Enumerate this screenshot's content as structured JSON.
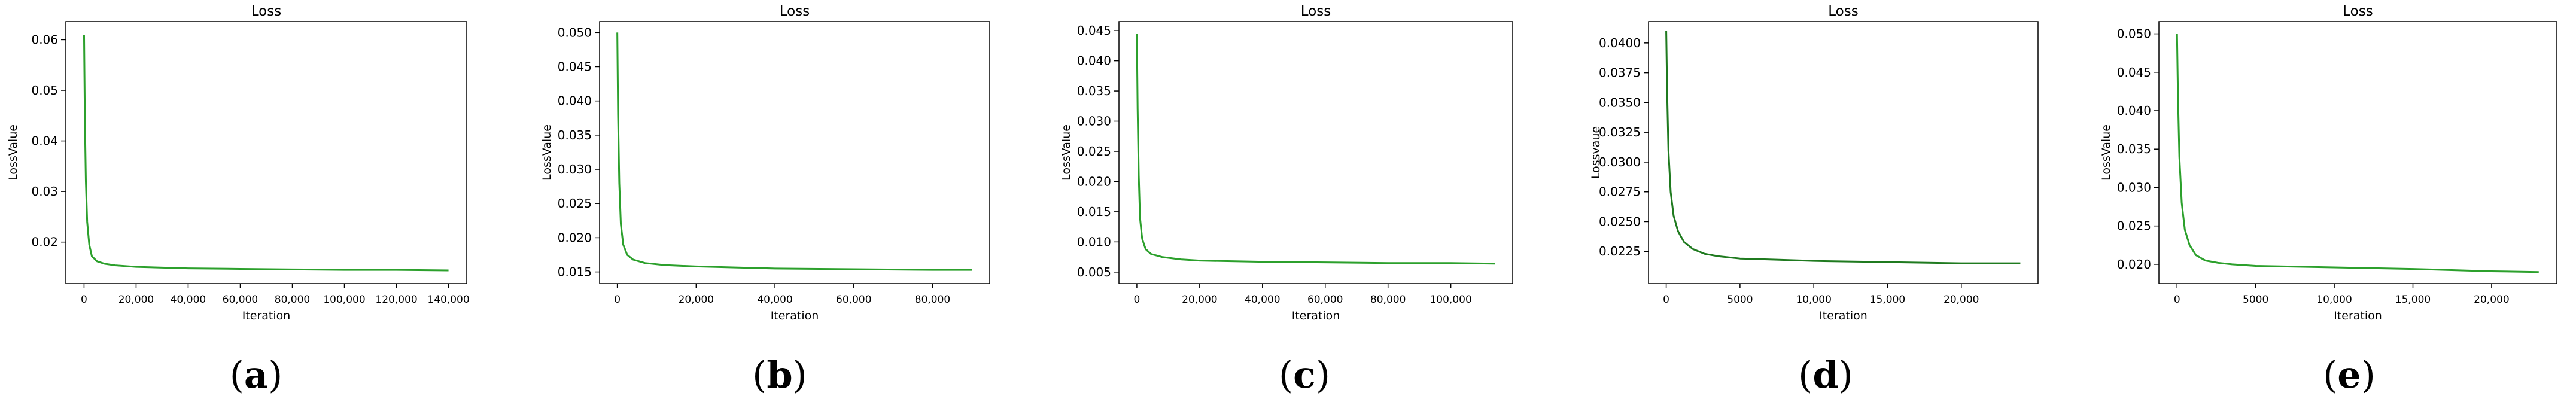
{
  "figure": {
    "captions": [
      {
        "open": "(",
        "letter": "a",
        "close": ")"
      },
      {
        "open": "(",
        "letter": "b",
        "close": ")"
      },
      {
        "open": "(",
        "letter": "c",
        "close": ")"
      },
      {
        "open": "(",
        "letter": "d",
        "close": ")"
      },
      {
        "open": "(",
        "letter": "e",
        "close": ")"
      }
    ]
  },
  "chart_data": [
    {
      "type": "line",
      "title": "Loss",
      "xlabel": "Iteration",
      "ylabel": "LossValue",
      "line_color": "#2ca02c",
      "xlim": [
        -7000,
        147000
      ],
      "ylim": [
        0.0118,
        0.0636
      ],
      "xticks": [
        0,
        20000,
        40000,
        60000,
        80000,
        100000,
        120000,
        140000
      ],
      "xtick_labels": [
        "0",
        "20,000",
        "40,000",
        "60,000",
        "80,000",
        "100,000",
        "120,000",
        "140,000"
      ],
      "yticks": [
        0.02,
        0.03,
        0.04,
        0.05,
        0.06
      ],
      "ytick_labels": [
        "0.02",
        "0.03",
        "0.04",
        "0.05",
        "0.06"
      ],
      "grid": false,
      "series": [
        {
          "x": [
            0,
            300,
            700,
            1200,
            2000,
            3000,
            5000,
            8000,
            12000,
            20000,
            40000,
            60000,
            80000,
            100000,
            120000,
            140000
          ],
          "y": [
            0.061,
            0.045,
            0.032,
            0.024,
            0.0195,
            0.0172,
            0.0162,
            0.0157,
            0.0154,
            0.0151,
            0.0148,
            0.0147,
            0.0146,
            0.0145,
            0.0145,
            0.0144
          ]
        }
      ]
    },
    {
      "type": "line",
      "title": "Loss",
      "xlabel": "Iteration",
      "ylabel": "LossValue",
      "line_color": "#2ca02c",
      "xlim": [
        -4500,
        94500
      ],
      "ylim": [
        0.0133,
        0.0516
      ],
      "xticks": [
        0,
        20000,
        40000,
        60000,
        80000
      ],
      "xtick_labels": [
        "0",
        "20,000",
        "40,000",
        "60,000",
        "80,000"
      ],
      "yticks": [
        0.015,
        0.02,
        0.025,
        0.03,
        0.035,
        0.04,
        0.045,
        0.05
      ],
      "ytick_labels": [
        "0.015",
        "0.020",
        "0.025",
        "0.030",
        "0.035",
        "0.040",
        "0.045",
        "0.050"
      ],
      "grid": false,
      "series": [
        {
          "x": [
            0,
            200,
            500,
            900,
            1500,
            2500,
            4000,
            7000,
            12000,
            20000,
            40000,
            60000,
            80000,
            90000
          ],
          "y": [
            0.05,
            0.038,
            0.028,
            0.022,
            0.019,
            0.0175,
            0.0168,
            0.0163,
            0.016,
            0.0158,
            0.0155,
            0.0154,
            0.0153,
            0.0153
          ]
        }
      ]
    },
    {
      "type": "line",
      "title": "Loss",
      "xlabel": "Iteration",
      "ylabel": "LossValue",
      "line_color": "#2ca02c",
      "xlim": [
        -5700,
        119700
      ],
      "ylim": [
        0.0031,
        0.0465
      ],
      "xticks": [
        0,
        20000,
        40000,
        60000,
        80000,
        100000
      ],
      "xtick_labels": [
        "0",
        "20,000",
        "40,000",
        "60,000",
        "80,000",
        "100,000"
      ],
      "yticks": [
        0.005,
        0.01,
        0.015,
        0.02,
        0.025,
        0.03,
        0.035,
        0.04,
        0.045
      ],
      "ytick_labels": [
        "0.005",
        "0.010",
        "0.015",
        "0.020",
        "0.025",
        "0.030",
        "0.035",
        "0.040",
        "0.045"
      ],
      "grid": false,
      "series": [
        {
          "x": [
            0,
            250,
            600,
            1000,
            1700,
            2800,
            4500,
            8000,
            14000,
            20000,
            40000,
            60000,
            80000,
            100000,
            114000
          ],
          "y": [
            0.0445,
            0.032,
            0.021,
            0.014,
            0.0105,
            0.0088,
            0.008,
            0.0075,
            0.0071,
            0.0069,
            0.0067,
            0.0066,
            0.0065,
            0.0065,
            0.0064
          ]
        }
      ]
    },
    {
      "type": "line",
      "title": "Loss",
      "xlabel": "Iteration",
      "ylabel": "Lossvaue",
      "line_color": "#1f7a1f",
      "xlim": [
        -1200,
        25200
      ],
      "ylim": [
        0.0198,
        0.0418
      ],
      "xticks": [
        0,
        5000,
        10000,
        15000,
        20000
      ],
      "xtick_labels": [
        "0",
        "5000",
        "10,000",
        "15,000",
        "20,000"
      ],
      "yticks": [
        0.0225,
        0.025,
        0.0275,
        0.03,
        0.0325,
        0.035,
        0.0375,
        0.04
      ],
      "ytick_labels": [
        "0.0225",
        "0.0250",
        "0.0275",
        "0.0300",
        "0.0325",
        "0.0350",
        "0.0375",
        "0.0400"
      ],
      "grid": false,
      "series": [
        {
          "x": [
            0,
            60,
            150,
            300,
            500,
            800,
            1200,
            1800,
            2600,
            3500,
            5000,
            7500,
            10000,
            15000,
            20000,
            24000
          ],
          "y": [
            0.041,
            0.036,
            0.031,
            0.0275,
            0.0255,
            0.0242,
            0.0233,
            0.0227,
            0.0223,
            0.0221,
            0.0219,
            0.0218,
            0.0217,
            0.0216,
            0.0215,
            0.0215
          ]
        }
      ]
    },
    {
      "type": "line",
      "title": "Loss",
      "xlabel": "Iteration",
      "ylabel": "LossValue",
      "line_color": "#2ca02c",
      "xlim": [
        -1150,
        24150
      ],
      "ylim": [
        0.0175,
        0.0516
      ],
      "xticks": [
        0,
        5000,
        10000,
        15000,
        20000
      ],
      "xtick_labels": [
        "0",
        "5000",
        "10,000",
        "15,000",
        "20,000"
      ],
      "yticks": [
        0.02,
        0.025,
        0.03,
        0.035,
        0.04,
        0.045,
        0.05
      ],
      "ytick_labels": [
        "0.020",
        "0.025",
        "0.030",
        "0.035",
        "0.040",
        "0.045",
        "0.050"
      ],
      "grid": false,
      "series": [
        {
          "x": [
            0,
            60,
            150,
            300,
            500,
            800,
            1200,
            1800,
            2600,
            3500,
            5000,
            7500,
            10000,
            15000,
            20000,
            23000
          ],
          "y": [
            0.05,
            0.042,
            0.034,
            0.028,
            0.0245,
            0.0225,
            0.0212,
            0.0205,
            0.0202,
            0.02,
            0.0198,
            0.0197,
            0.0196,
            0.0194,
            0.0191,
            0.019
          ]
        }
      ]
    }
  ]
}
